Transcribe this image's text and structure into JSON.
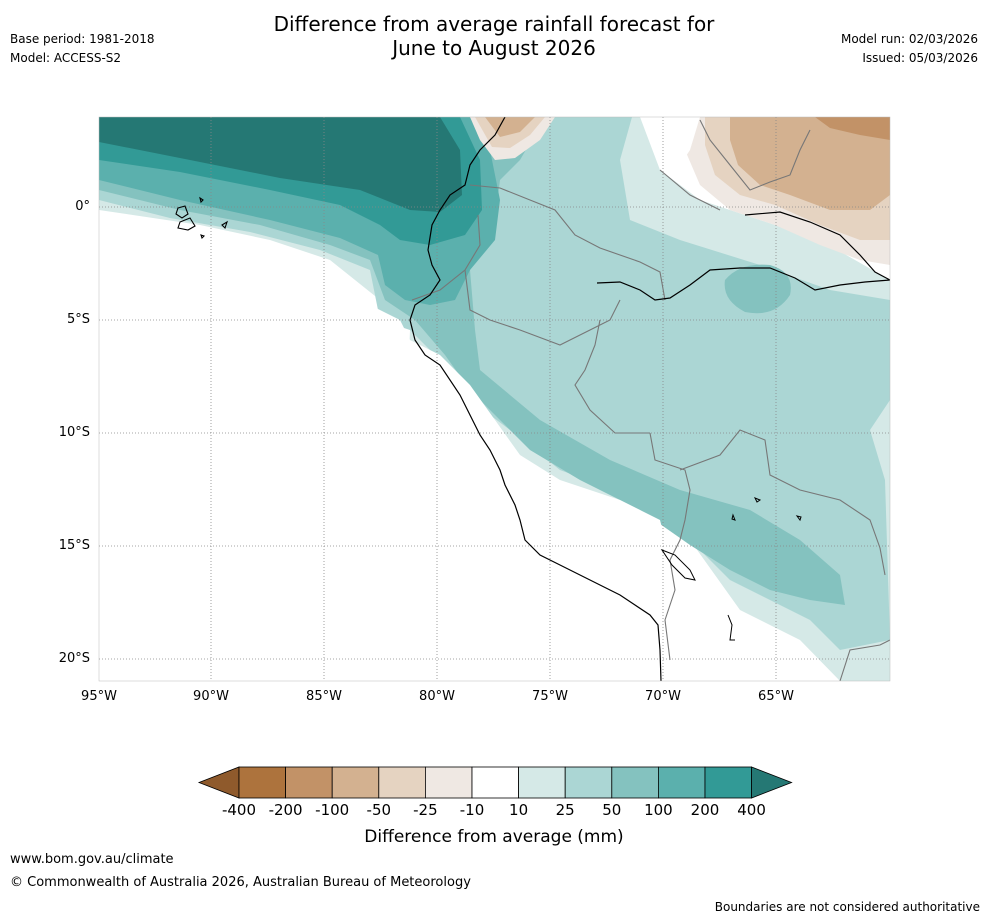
{
  "header": {
    "title_line1": "Difference from average rainfall forecast for",
    "title_line2": "June to August 2026",
    "base_period": "Base period: 1981-2018",
    "model": "Model: ACCESS-S2",
    "model_run": "Model run: 02/03/2026",
    "issued": "Issued: 05/03/2026"
  },
  "map": {
    "lat_labels": [
      "0°",
      "5°S",
      "10°S",
      "15°S",
      "20°S"
    ],
    "lon_labels": [
      "95°W",
      "90°W",
      "85°W",
      "80°W",
      "75°W",
      "70°W",
      "65°W"
    ]
  },
  "colorbar": {
    "ticks": [
      "-400",
      "-200",
      "-100",
      "-50",
      "-25",
      "-10",
      "10",
      "25",
      "50",
      "100",
      "200",
      "400"
    ],
    "colors": [
      "#8f5a2c",
      "#ad733d",
      "#c29267",
      "#d3b190",
      "#e5d3c1",
      "#efe8e3",
      "#ffffff",
      "#d5e9e7",
      "#abd6d4",
      "#84c2bf",
      "#5bb0ad",
      "#329a96",
      "#257874"
    ],
    "title": "Difference from average (mm)"
  },
  "footer": {
    "url": "www.bom.gov.au/climate",
    "copyright": "© Commonwealth of Australia 2026, Australian Bureau of Meteorology",
    "disclaimer": "Boundaries are not considered authoritative"
  }
}
